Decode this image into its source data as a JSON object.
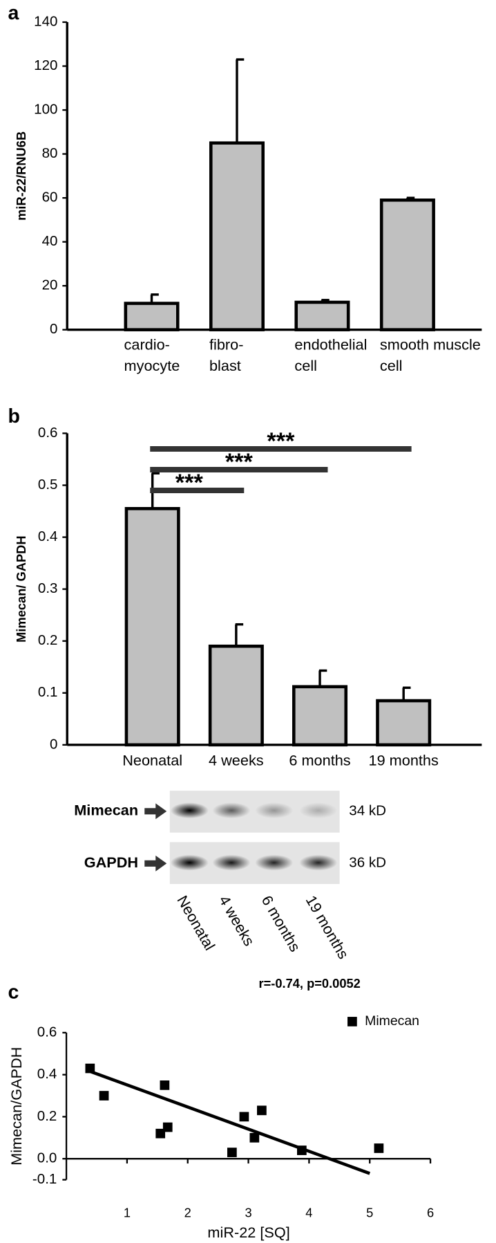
{
  "chart_data": [
    {
      "type": "bar",
      "panel_label": "a",
      "y_label": "miR-22/RNU6B",
      "categories": [
        [
          "cardio-",
          "myocyte"
        ],
        [
          "fibro-",
          "blast"
        ],
        [
          "endothelial",
          "cell"
        ],
        [
          "smooth muscle",
          "cell"
        ]
      ],
      "values": [
        12,
        85,
        12.5,
        59
      ],
      "errors": [
        4,
        38,
        1,
        1
      ],
      "color": "#c0c0c0",
      "ylim": [
        0,
        140
      ],
      "yticks": [
        0,
        20,
        40,
        60,
        80,
        100,
        120,
        140
      ]
    },
    {
      "type": "bar",
      "panel_label": "b",
      "y_label": "Mimecan/ GAPDH",
      "categories": [
        "Neonatal",
        "4 weeks",
        "6 months",
        "19 months"
      ],
      "values": [
        0.455,
        0.19,
        0.112,
        0.085
      ],
      "errors": [
        0.068,
        0.042,
        0.031,
        0.025
      ],
      "color": "#c0c0c0",
      "ylim": [
        0,
        0.6
      ],
      "yticks": [
        0,
        0.1,
        0.2,
        0.3,
        0.4,
        0.5,
        0.6
      ],
      "significance": [
        {
          "label": "***",
          "from": 0,
          "to": 3,
          "y": 0.57
        },
        {
          "label": "***",
          "from": 0,
          "to": 2,
          "y": 0.53
        },
        {
          "label": "***",
          "from": 0,
          "to": 1,
          "y": 0.49
        }
      ],
      "blot": {
        "rows": [
          {
            "name": "Mimecan",
            "size": "34 kD"
          },
          {
            "name": "GAPDH",
            "size": "36 kD"
          }
        ]
      }
    },
    {
      "type": "scatter",
      "panel_label": "c",
      "title": "r=-0.74, p=0.0052",
      "x_label": "miR-22 [SQ]",
      "y_label": "Mimecan/GAPDH",
      "series": [
        {
          "name": "Mimecan",
          "color": "#000000",
          "x": [
            0.39,
            0.62,
            1.62,
            1.55,
            1.67,
            2.73,
            2.93,
            3.1,
            3.22,
            3.88,
            5.15
          ],
          "values": [
            0.43,
            0.3,
            0.35,
            0.12,
            0.15,
            0.03,
            0.2,
            0.1,
            0.23,
            0.04,
            0.05
          ]
        }
      ],
      "fit": {
        "x": [
          0.35,
          5.0
        ],
        "y": [
          0.42,
          -0.07
        ]
      },
      "xlim": [
        0,
        6
      ],
      "xticks": [
        1,
        2,
        3,
        4,
        5,
        6
      ],
      "ylim": [
        -0.1,
        0.6
      ],
      "yticks": [
        -0.1,
        {
          "value": 0,
          "label": "0.0"
        },
        0.2,
        0.4,
        0.6
      ],
      "legend": "upper right"
    }
  ]
}
